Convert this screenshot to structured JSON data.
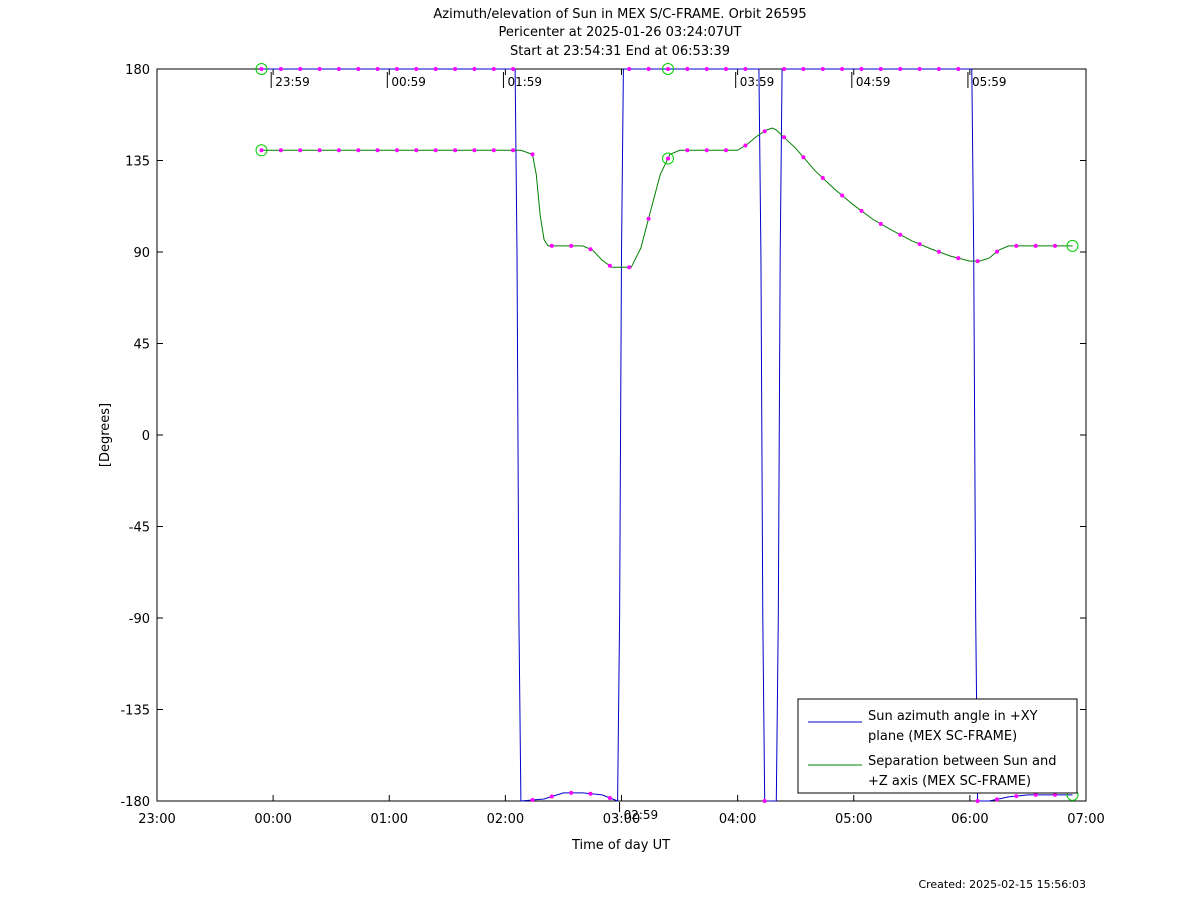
{
  "chart_data": {
    "type": "line",
    "title": "Azimuth/elevation of Sun in MEX S/C-FRAME.  Orbit 26595",
    "subtitle_lines": [
      "Pericenter at 2025-01-26 03:24:07UT",
      "Start at 23:54:31 End at 06:53:39"
    ],
    "xlabel": "Time of day UT",
    "ylabel": "[Degrees]",
    "xlim": [
      "23:00",
      "07:00"
    ],
    "x_tick_labels": [
      "23:00",
      "00:00",
      "01:00",
      "02:00",
      "03:00",
      "04:00",
      "05:00",
      "06:00",
      "07:00"
    ],
    "ylim": [
      -180,
      180
    ],
    "y_tick_labels": [
      "180",
      "135",
      "90",
      "45",
      "0",
      "-45",
      "-90",
      "-135",
      "-180"
    ],
    "orbit_time_labels": [
      "23:59",
      "00:59",
      "01:59",
      "02:59",
      "03:59",
      "04:59",
      "05:59"
    ],
    "legend_position": "bottom-right",
    "series": [
      {
        "name_lines": [
          "Sun azimuth angle in +XY",
          "plane (MEX SC-FRAME)"
        ],
        "color": "#0000cc",
        "points": [
          [
            "23:54",
            180
          ],
          [
            "02:05",
            180
          ],
          [
            "02:06",
            90
          ],
          [
            "02:07",
            -90
          ],
          [
            "02:08",
            -180
          ],
          [
            "02:20",
            -179
          ],
          [
            "02:30",
            -176
          ],
          [
            "02:40",
            -176
          ],
          [
            "02:50",
            -177
          ],
          [
            "02:58",
            -180
          ],
          [
            "02:59",
            -90
          ],
          [
            "03:00",
            90
          ],
          [
            "03:01",
            180
          ],
          [
            "04:11",
            180
          ],
          [
            "04:12",
            90
          ],
          [
            "04:13",
            -90
          ],
          [
            "04:14",
            -180
          ],
          [
            "04:20",
            -180
          ],
          [
            "04:21",
            -90
          ],
          [
            "04:22",
            90
          ],
          [
            "04:23",
            180
          ],
          [
            "06:01",
            180
          ],
          [
            "06:02",
            90
          ],
          [
            "06:03",
            -90
          ],
          [
            "06:04",
            -180
          ],
          [
            "06:10",
            -180
          ],
          [
            "06:20",
            -178
          ],
          [
            "06:30",
            -177
          ],
          [
            "06:53",
            -177
          ]
        ]
      },
      {
        "name_lines": [
          "Separation between Sun and",
          "+Z axis (MEX SC-FRAME)"
        ],
        "color": "#008000",
        "points": [
          [
            "23:54",
            140
          ],
          [
            "02:08",
            140
          ],
          [
            "02:14",
            138
          ],
          [
            "02:16",
            128
          ],
          [
            "02:18",
            108
          ],
          [
            "02:20",
            96
          ],
          [
            "02:22",
            93
          ],
          [
            "02:40",
            93
          ],
          [
            "02:45",
            91
          ],
          [
            "02:50",
            86
          ],
          [
            "02:55",
            82.5
          ],
          [
            "03:05",
            82.5
          ],
          [
            "03:10",
            92
          ],
          [
            "03:15",
            110
          ],
          [
            "03:20",
            128
          ],
          [
            "03:25",
            138
          ],
          [
            "03:30",
            140
          ],
          [
            "04:00",
            140
          ],
          [
            "04:05",
            143
          ],
          [
            "04:10",
            147
          ],
          [
            "04:15",
            150
          ],
          [
            "04:18",
            151
          ],
          [
            "04:20",
            150
          ],
          [
            "04:30",
            141
          ],
          [
            "04:40",
            130
          ],
          [
            "04:50",
            121
          ],
          [
            "05:00",
            113
          ],
          [
            "05:10",
            106
          ],
          [
            "05:20",
            100.5
          ],
          [
            "05:30",
            95.5
          ],
          [
            "05:40",
            91.5
          ],
          [
            "05:50",
            88
          ],
          [
            "06:00",
            85.5
          ],
          [
            "06:05",
            85.5
          ],
          [
            "06:10",
            87
          ],
          [
            "06:15",
            91
          ],
          [
            "06:20",
            93
          ],
          [
            "06:53",
            93
          ]
        ]
      }
    ]
  },
  "footer": {
    "created": "Created: 2025-02-15 15:56:03"
  }
}
